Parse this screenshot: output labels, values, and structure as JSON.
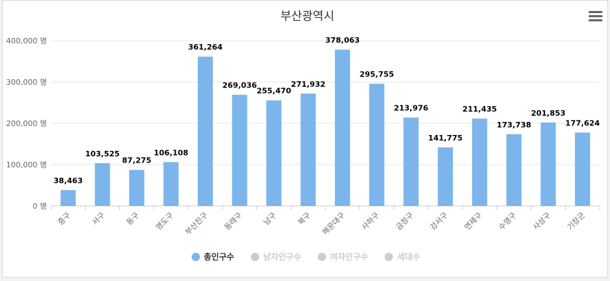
{
  "chart_data": {
    "type": "bar",
    "title": "부산광역시",
    "categories": [
      "중구",
      "서구",
      "동구",
      "영도구",
      "부산진구",
      "동래구",
      "남구",
      "북구",
      "해운대구",
      "사하구",
      "금정구",
      "강서구",
      "연제구",
      "수영구",
      "사상구",
      "기장군"
    ],
    "series": [
      {
        "name": "총인구수",
        "values": [
          38463,
          103525,
          87275,
          106108,
          361264,
          269036,
          255470,
          271932,
          378063,
          295755,
          213976,
          141775,
          211435,
          173738,
          201853,
          177624
        ],
        "visible": true
      },
      {
        "name": "남자인구수",
        "visible": false
      },
      {
        "name": "여자인구수",
        "visible": false
      },
      {
        "name": "세대수",
        "visible": false
      }
    ],
    "data_labels": [
      "38,463",
      "103,525",
      "87,275",
      "106,108",
      "361,264",
      "269,036",
      "255,470",
      "271,932",
      "378,063",
      "295,755",
      "213,976",
      "141,775",
      "211,435",
      "173,738",
      "201,853",
      "177,624"
    ],
    "yticks": [
      0,
      100000,
      200000,
      300000,
      400000
    ],
    "ytick_labels": [
      "0 명",
      "100,000 명",
      "200,000 명",
      "300,000 명",
      "400,000 명"
    ],
    "ylim": [
      0,
      400000
    ],
    "grid": true,
    "legend_position": "bottom-center"
  },
  "colors": {
    "bar": "#7cb5ec",
    "grid": "#e6e6e6",
    "legend_active_text": "#333333",
    "legend_inactive": "#cccccc"
  },
  "icons": {
    "menu": "hamburger-menu-icon"
  }
}
